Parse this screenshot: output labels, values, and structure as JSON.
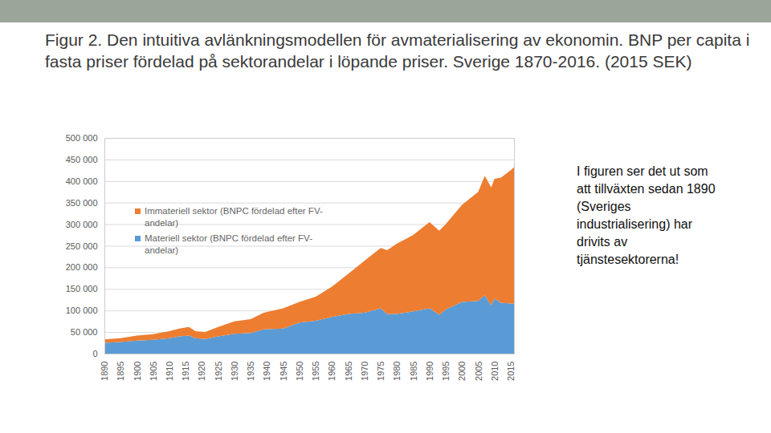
{
  "chart_data": {
    "type": "area",
    "stacked": true,
    "grid": true,
    "title": "Figur 2. Den intuitiva avlänkningsmodellen för avmaterialisering av ekonomin. BNP per capita i fasta priser fördelad på sektorandelar i löpande priser. Sverige 1870-2016. (2015 SEK)",
    "annotation": "I figuren ser det ut som att tillväxten sedan 1890 (Sveriges industrialisering) har drivits av tjänstesektorerna!",
    "legend": "top-left",
    "x": [
      1890,
      1895,
      1900,
      1905,
      1910,
      1913,
      1916,
      1918,
      1921,
      1925,
      1930,
      1935,
      1939,
      1945,
      1950,
      1955,
      1960,
      1965,
      1970,
      1975,
      1977,
      1980,
      1985,
      1990,
      1993,
      1995,
      2000,
      2005,
      2007,
      2009,
      2010,
      2012,
      2015,
      2016
    ],
    "series": [
      {
        "name": "Materiell sektor (BNPC fördelad efter FV-andelar)",
        "color": "#5b9bd5",
        "values": [
          25000,
          27000,
          30000,
          32000,
          36000,
          40000,
          42000,
          36000,
          34000,
          40000,
          46000,
          48000,
          56000,
          58000,
          72000,
          76000,
          85000,
          92000,
          95000,
          105000,
          92000,
          92000,
          98000,
          105000,
          90000,
          102000,
          120000,
          122000,
          135000,
          112000,
          128000,
          118000,
          116000,
          116000
        ]
      },
      {
        "name": "Immateriell sektor (BNPC fördelad efter FV-andelar)",
        "color": "#ed7d31",
        "values": [
          8000,
          9000,
          12000,
          13000,
          16000,
          18000,
          20000,
          16000,
          16000,
          22000,
          29000,
          32000,
          39000,
          47000,
          48000,
          56000,
          70000,
          93000,
          120000,
          140000,
          148000,
          163000,
          177000,
          200000,
          195000,
          198000,
          225000,
          253000,
          277000,
          273000,
          277000,
          290000,
          309000,
          316000
        ]
      }
    ],
    "xlim": [
      1890,
      2016
    ],
    "xticks": [
      1890,
      1895,
      1900,
      1905,
      1910,
      1915,
      1920,
      1925,
      1930,
      1935,
      1940,
      1945,
      1950,
      1955,
      1960,
      1965,
      1970,
      1975,
      1980,
      1985,
      1990,
      1995,
      2000,
      2005,
      2010,
      2015
    ],
    "ylim": [
      0,
      500000
    ],
    "yticks": [
      0,
      {
        "value": 50000,
        "label": "50 000"
      },
      {
        "value": 100000,
        "label": "100 000"
      },
      {
        "value": 150000,
        "label": "150 000"
      },
      {
        "value": 200000,
        "label": "200 000"
      },
      {
        "value": 250000,
        "label": "250 000"
      },
      {
        "value": 300000,
        "label": "300 000"
      },
      {
        "value": 350000,
        "label": "350 000"
      },
      {
        "value": 400000,
        "label": "400 000"
      },
      {
        "value": 450000,
        "label": "450 000"
      },
      {
        "value": 500000,
        "label": "500 000"
      }
    ]
  }
}
